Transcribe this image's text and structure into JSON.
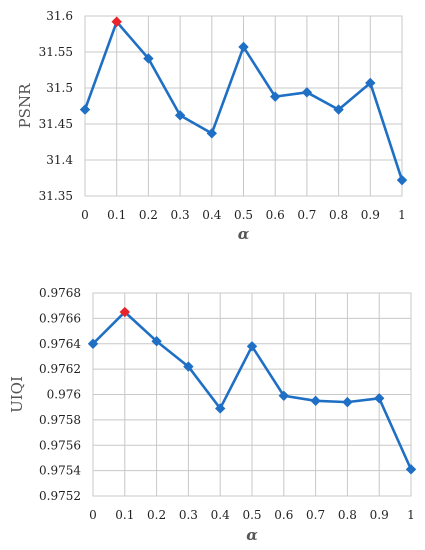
{
  "chart_data": [
    {
      "type": "line",
      "title": "",
      "xlabel": "α",
      "ylabel": "PSNR",
      "x": [
        0,
        0.1,
        0.2,
        0.3,
        0.4,
        0.5,
        0.6,
        0.7,
        0.8,
        0.9,
        1
      ],
      "x_tick_labels": [
        "0",
        "0.1",
        "0.2",
        "0.3",
        "0.4",
        "0.5",
        "0.6",
        "0.7",
        "0.8",
        "0.9",
        "1"
      ],
      "values": [
        31.47,
        31.592,
        31.541,
        31.462,
        31.437,
        31.557,
        31.488,
        31.494,
        31.47,
        31.507,
        31.372
      ],
      "ylim": [
        31.35,
        31.6
      ],
      "y_ticks": [
        31.35,
        31.4,
        31.45,
        31.5,
        31.55,
        31.6
      ],
      "y_tick_labels": [
        "31.35",
        "31.4",
        "31.45",
        "31.5",
        "31.55",
        "31.6"
      ],
      "highlight_index": 1,
      "grid": true,
      "legend": "none"
    },
    {
      "type": "line",
      "title": "",
      "xlabel": "α",
      "ylabel": "UIQI",
      "x": [
        0,
        0.1,
        0.2,
        0.3,
        0.4,
        0.5,
        0.6,
        0.7,
        0.8,
        0.9,
        1
      ],
      "x_tick_labels": [
        "0",
        "0.1",
        "0.2",
        "0.3",
        "0.4",
        "0.5",
        "0.6",
        "0.7",
        "0.8",
        "0.9",
        "1"
      ],
      "values": [
        0.9764,
        0.97665,
        0.97642,
        0.97622,
        0.97589,
        0.97638,
        0.97599,
        0.97595,
        0.97594,
        0.97597,
        0.97541
      ],
      "ylim": [
        0.9752,
        0.9768
      ],
      "y_ticks": [
        0.9752,
        0.9754,
        0.9756,
        0.9758,
        0.976,
        0.9762,
        0.9764,
        0.9766,
        0.9768
      ],
      "y_tick_labels": [
        "0.9752",
        "0.9754",
        "0.9756",
        "0.9758",
        "0.976",
        "0.9762",
        "0.9764",
        "0.9766",
        "0.9768"
      ],
      "highlight_index": 1,
      "grid": true,
      "legend": "none"
    }
  ],
  "colors": {
    "series": "#1f6fc4",
    "highlight": "#e8232a",
    "grid": "#c8c8c8"
  }
}
